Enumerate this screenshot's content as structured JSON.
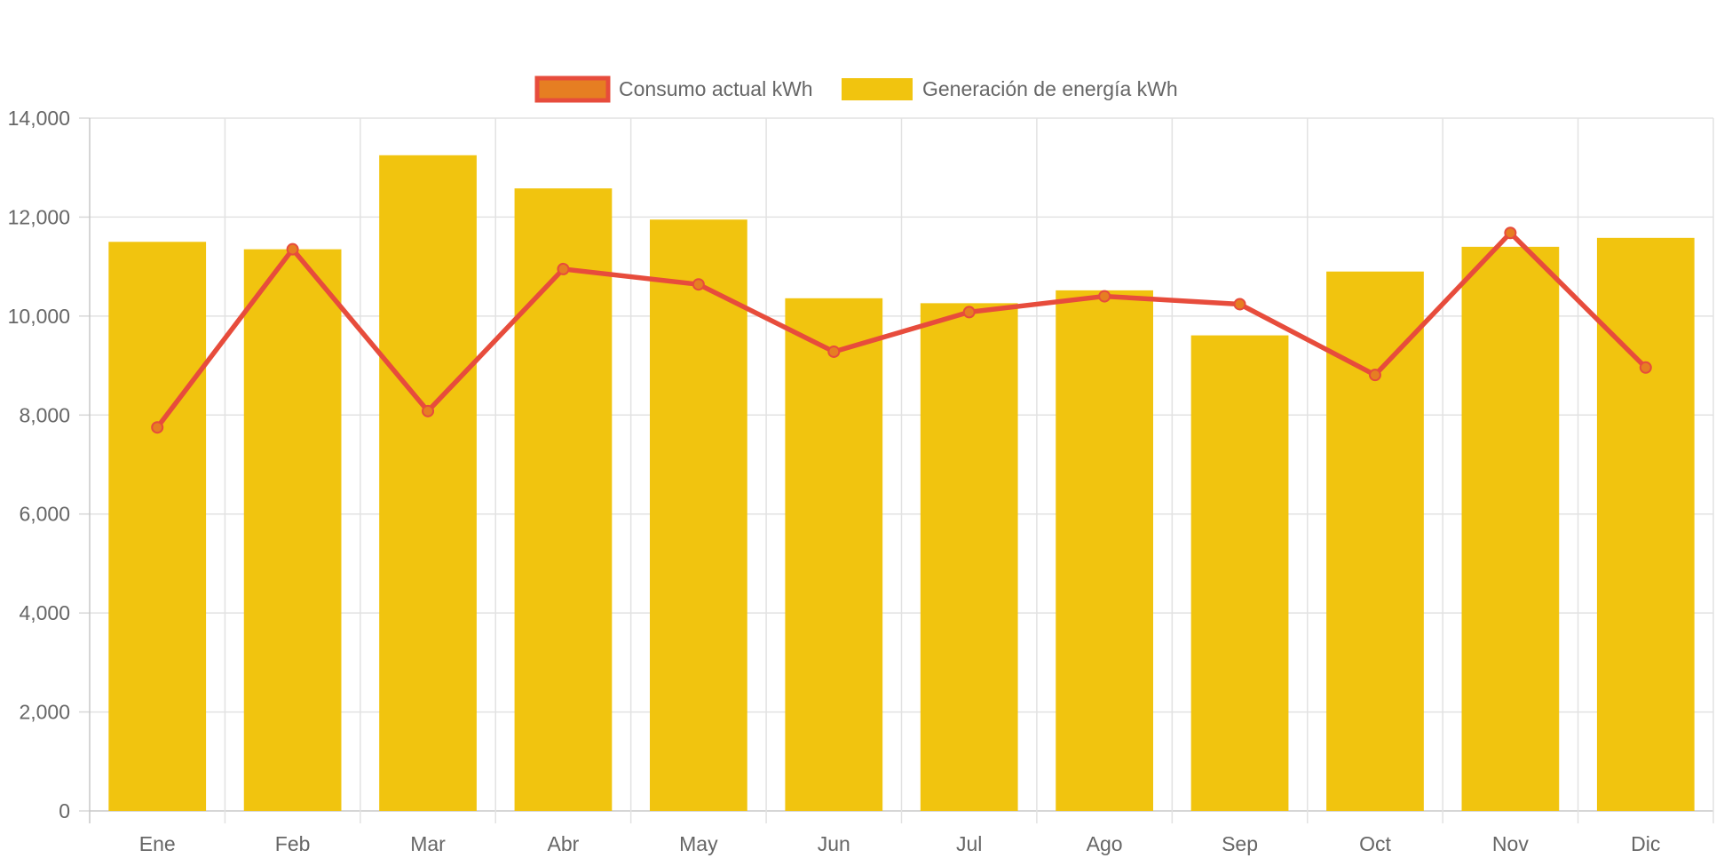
{
  "chart_data": {
    "type": "bar",
    "categories": [
      "Ene",
      "Feb",
      "Mar",
      "Abr",
      "May",
      "Jun",
      "Jul",
      "Ago",
      "Sep",
      "Oct",
      "Nov",
      "Dic"
    ],
    "series": [
      {
        "name": "Consumo actual kWh",
        "type": "line",
        "color": "#e74c3c",
        "point_color": "#e67e22",
        "values": [
          7750,
          11350,
          8080,
          10950,
          10640,
          9280,
          10080,
          10400,
          10240,
          8810,
          11680,
          8960
        ]
      },
      {
        "name": "Generación de energía kWh",
        "type": "bar",
        "color": "#f1c40f",
        "values": [
          11500,
          11350,
          13250,
          12580,
          11950,
          10360,
          10260,
          10520,
          9610,
          10900,
          11400,
          11580
        ]
      }
    ],
    "y_ticks": [
      "0",
      "2,000",
      "4,000",
      "6,000",
      "8,000",
      "10,000",
      "12,000",
      "14,000"
    ],
    "ylim": [
      0,
      14000
    ],
    "grid": true,
    "legend": "top-center",
    "title": "",
    "xlabel": "",
    "ylabel": ""
  }
}
